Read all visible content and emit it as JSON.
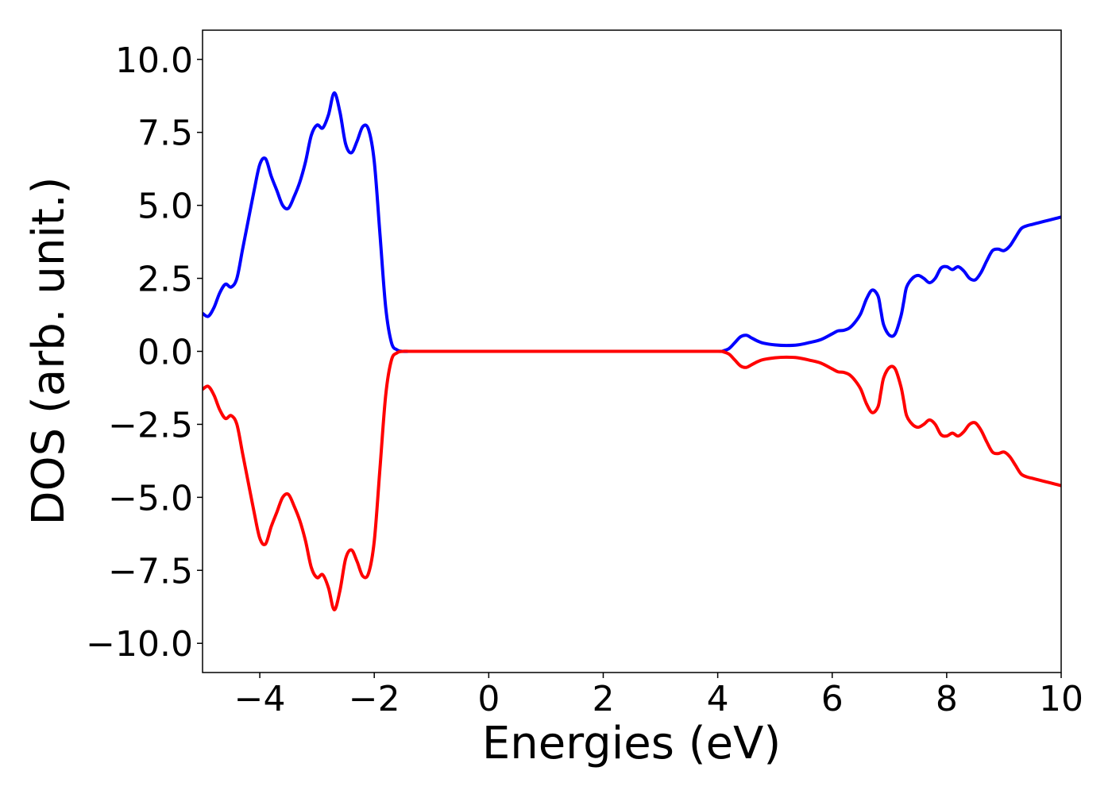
{
  "chart_data": {
    "type": "line",
    "title": "",
    "xlabel": "Energies (eV)",
    "ylabel": "DOS (arb. unit.)",
    "xlim": [
      -5,
      10
    ],
    "ylim": [
      -11,
      11
    ],
    "xticks": [
      -4,
      -2,
      0,
      2,
      4,
      6,
      8,
      10
    ],
    "xtick_labels": [
      "−4",
      "−2",
      "0",
      "2",
      "4",
      "6",
      "8",
      "10"
    ],
    "yticks": [
      10,
      7.5,
      5,
      2.5,
      0,
      -2.5,
      -5,
      -7.5,
      -10
    ],
    "ytick_labels": [
      "10.0",
      "7.5",
      "5.0",
      "2.5",
      "0.0",
      "−2.5",
      "−5.0",
      "−7.5",
      "−10.0"
    ],
    "grid": false,
    "series": [
      {
        "color": "#0000ff",
        "x": [
          -5.0,
          -4.9,
          -4.8,
          -4.7,
          -4.6,
          -4.5,
          -4.4,
          -4.3,
          -4.2,
          -4.1,
          -4.0,
          -3.9,
          -3.8,
          -3.7,
          -3.6,
          -3.5,
          -3.4,
          -3.3,
          -3.2,
          -3.1,
          -3.0,
          -2.9,
          -2.8,
          -2.7,
          -2.6,
          -2.5,
          -2.4,
          -2.3,
          -2.2,
          -2.1,
          -2.0,
          -1.9,
          -1.8,
          -1.7,
          -1.6,
          -1.5,
          -1.4,
          -1.3,
          -1.2,
          -1.1,
          -1.0,
          -0.9,
          -0.8,
          -0.7,
          -0.6,
          -0.5,
          0.0,
          1.0,
          2.0,
          3.0,
          4.0,
          4.1,
          4.2,
          4.3,
          4.4,
          4.5,
          4.6,
          4.7,
          4.8,
          5.0,
          5.2,
          5.4,
          5.6,
          5.8,
          6.0,
          6.1,
          6.2,
          6.3,
          6.4,
          6.5,
          6.6,
          6.7,
          6.8,
          6.85,
          6.9,
          7.0,
          7.1,
          7.2,
          7.25,
          7.3,
          7.4,
          7.5,
          7.6,
          7.7,
          7.8,
          7.9,
          8.0,
          8.1,
          8.2,
          8.3,
          8.4,
          8.5,
          8.6,
          8.7,
          8.8,
          8.9,
          9.0,
          9.1,
          9.2,
          9.3,
          9.4,
          9.5,
          9.6,
          9.7,
          9.8,
          9.9,
          10.0
        ],
        "y": [
          1.3,
          1.2,
          1.5,
          2.0,
          2.3,
          2.2,
          2.5,
          3.5,
          4.5,
          5.5,
          6.4,
          6.6,
          6.0,
          5.5,
          5.0,
          4.9,
          5.3,
          5.8,
          6.5,
          7.4,
          7.75,
          7.65,
          8.1,
          8.85,
          8.2,
          7.1,
          6.8,
          7.2,
          7.7,
          7.6,
          6.5,
          4.0,
          1.5,
          0.3,
          0.05,
          0.0,
          0.0,
          0.0,
          0.0,
          0.0,
          0.0,
          0.0,
          0.0,
          0.0,
          0.0,
          0.0,
          0.0,
          0.0,
          0.0,
          0.0,
          0.0,
          0.02,
          0.1,
          0.3,
          0.5,
          0.55,
          0.45,
          0.35,
          0.28,
          0.22,
          0.2,
          0.22,
          0.3,
          0.4,
          0.6,
          0.7,
          0.72,
          0.8,
          1.0,
          1.3,
          1.8,
          2.1,
          1.9,
          1.4,
          0.9,
          0.55,
          0.6,
          1.2,
          1.7,
          2.2,
          2.5,
          2.6,
          2.5,
          2.35,
          2.5,
          2.85,
          2.9,
          2.8,
          2.9,
          2.75,
          2.5,
          2.45,
          2.7,
          3.1,
          3.45,
          3.5,
          3.45,
          3.6,
          3.9,
          4.2,
          4.3,
          4.35,
          4.4,
          4.45,
          4.5,
          4.55,
          4.6
        ],
        "name": ""
      },
      {
        "color": "#ff0000",
        "x": [
          -5.0,
          -4.9,
          -4.8,
          -4.7,
          -4.6,
          -4.5,
          -4.4,
          -4.3,
          -4.2,
          -4.1,
          -4.0,
          -3.9,
          -3.8,
          -3.7,
          -3.6,
          -3.5,
          -3.4,
          -3.3,
          -3.2,
          -3.1,
          -3.0,
          -2.9,
          -2.8,
          -2.7,
          -2.6,
          -2.5,
          -2.4,
          -2.3,
          -2.2,
          -2.1,
          -2.0,
          -1.9,
          -1.8,
          -1.7,
          -1.6,
          -1.5,
          -1.4,
          -1.3,
          -1.2,
          -1.1,
          -1.0,
          -0.9,
          -0.8,
          -0.7,
          -0.6,
          -0.5,
          0.0,
          1.0,
          2.0,
          3.0,
          4.0,
          4.1,
          4.2,
          4.3,
          4.4,
          4.5,
          4.6,
          4.7,
          4.8,
          5.0,
          5.2,
          5.4,
          5.6,
          5.8,
          6.0,
          6.1,
          6.2,
          6.3,
          6.4,
          6.5,
          6.6,
          6.7,
          6.8,
          6.85,
          6.9,
          7.0,
          7.1,
          7.2,
          7.25,
          7.3,
          7.4,
          7.5,
          7.6,
          7.7,
          7.8,
          7.9,
          8.0,
          8.1,
          8.2,
          8.3,
          8.4,
          8.5,
          8.6,
          8.7,
          8.8,
          8.9,
          9.0,
          9.1,
          9.2,
          9.3,
          9.4,
          9.5,
          9.6,
          9.7,
          9.8,
          9.9,
          10.0
        ],
        "y": [
          -1.3,
          -1.2,
          -1.5,
          -2.0,
          -2.3,
          -2.2,
          -2.5,
          -3.5,
          -4.5,
          -5.5,
          -6.4,
          -6.6,
          -6.0,
          -5.5,
          -5.0,
          -4.9,
          -5.3,
          -5.8,
          -6.5,
          -7.4,
          -7.75,
          -7.65,
          -8.1,
          -8.85,
          -8.2,
          -7.1,
          -6.8,
          -7.2,
          -7.7,
          -7.6,
          -6.5,
          -4.0,
          -1.5,
          -0.3,
          -0.05,
          0.0,
          0.0,
          0.0,
          0.0,
          0.0,
          0.0,
          0.0,
          0.0,
          0.0,
          0.0,
          0.0,
          0.0,
          0.0,
          0.0,
          0.0,
          0.0,
          -0.02,
          -0.1,
          -0.3,
          -0.5,
          -0.55,
          -0.45,
          -0.35,
          -0.28,
          -0.22,
          -0.2,
          -0.22,
          -0.3,
          -0.4,
          -0.6,
          -0.7,
          -0.72,
          -0.8,
          -1.0,
          -1.3,
          -1.8,
          -2.1,
          -1.9,
          -1.4,
          -0.9,
          -0.55,
          -0.6,
          -1.2,
          -1.7,
          -2.2,
          -2.5,
          -2.6,
          -2.5,
          -2.35,
          -2.5,
          -2.85,
          -2.9,
          -2.8,
          -2.9,
          -2.75,
          -2.5,
          -2.45,
          -2.7,
          -3.1,
          -3.45,
          -3.5,
          -3.45,
          -3.6,
          -3.9,
          -4.2,
          -4.3,
          -4.35,
          -4.4,
          -4.45,
          -4.5,
          -4.55,
          -4.6
        ],
        "name": ""
      }
    ]
  }
}
